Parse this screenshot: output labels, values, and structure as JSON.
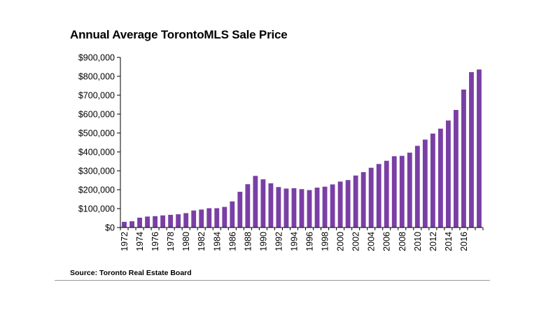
{
  "chart_data": {
    "type": "bar",
    "title": "Annual Average TorontoMLS Sale Price",
    "xlabel": "",
    "ylabel": "",
    "source": "Source: Toronto Real Estate Board",
    "ylim": [
      0,
      900000
    ],
    "yticks": [
      0,
      100000,
      200000,
      300000,
      400000,
      500000,
      600000,
      700000,
      800000,
      900000
    ],
    "ytick_labels": [
      "$0",
      "$100,000",
      "$200,000",
      "$300,000",
      "$400,000",
      "$500,000",
      "$600,000",
      "$700,000",
      "$800,000",
      "$900,000"
    ],
    "categories": [
      "1972",
      "1973",
      "1974",
      "1975",
      "1976",
      "1977",
      "1978",
      "1979",
      "1980",
      "1981",
      "1982",
      "1983",
      "1984",
      "1985",
      "1986",
      "1987",
      "1988",
      "1989",
      "1990",
      "1991",
      "1992",
      "1993",
      "1994",
      "1995",
      "1996",
      "1997",
      "1998",
      "1999",
      "2000",
      "2001",
      "2002",
      "2003",
      "2004",
      "2005",
      "2006",
      "2007",
      "2008",
      "2009",
      "2010",
      "2011",
      "2012",
      "2013",
      "2014",
      "2015",
      "2016",
      "2017",
      "2018"
    ],
    "x_tick_labels": [
      "1972",
      "1974",
      "1976",
      "1978",
      "1980",
      "1982",
      "1984",
      "1986",
      "1988",
      "1990",
      "1992",
      "1994",
      "1996",
      "1998",
      "2000",
      "2002",
      "2004",
      "2006",
      "2008",
      "2010",
      "2012",
      "2014",
      "2016"
    ],
    "values": [
      30000,
      33000,
      52000,
      58000,
      60000,
      64000,
      67000,
      70000,
      76000,
      90000,
      95000,
      102000,
      102000,
      109000,
      138000,
      189000,
      229000,
      273000,
      255000,
      234000,
      214000,
      206000,
      208000,
      203000,
      198000,
      211000,
      216000,
      228000,
      243000,
      251000,
      275000,
      293000,
      316000,
      336000,
      353000,
      377000,
      379000,
      396000,
      432000,
      465000,
      497000,
      523000,
      566000,
      622000,
      730000,
      822000,
      836000
    ],
    "grid": false,
    "legend": "none",
    "colors": {
      "bar": "#7a3fa5",
      "axis": "#000000"
    }
  }
}
